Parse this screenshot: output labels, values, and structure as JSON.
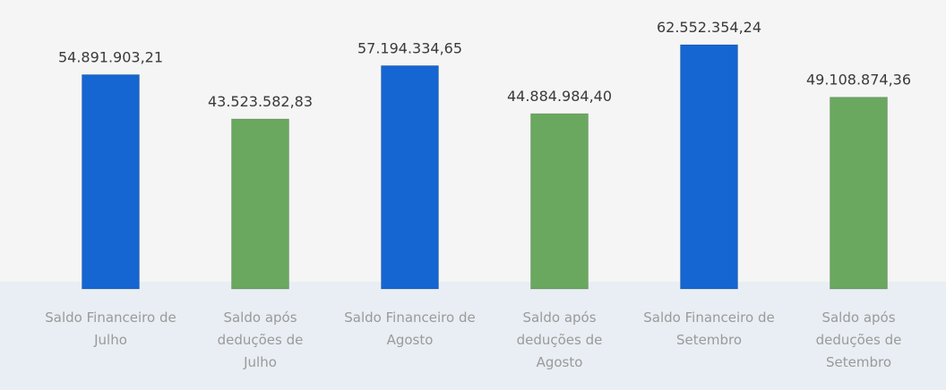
{
  "chart_data": {
    "type": "bar",
    "categories": [
      "Saldo Financeiro de Julho",
      "Saldo após deduções de Julho",
      "Saldo Financeiro de Agosto",
      "Saldo após deduções de Agosto",
      "Saldo Financeiro de Setembro",
      "Saldo após deduções de Setembro"
    ],
    "values": [
      54891903.21,
      43523582.83,
      57194334.65,
      44884984.4,
      62552354.24,
      49108874.36
    ],
    "value_labels": [
      "54.891.903,21",
      "43.523.582,83",
      "57.194.334,65",
      "44.884.984,40",
      "62.552.354,24",
      "49.108.874,36"
    ],
    "colors": [
      "#1565d2",
      "#6aa860",
      "#1565d2",
      "#6aa860",
      "#1565d2",
      "#6aa860"
    ],
    "ylim": [
      0,
      70000000
    ]
  }
}
